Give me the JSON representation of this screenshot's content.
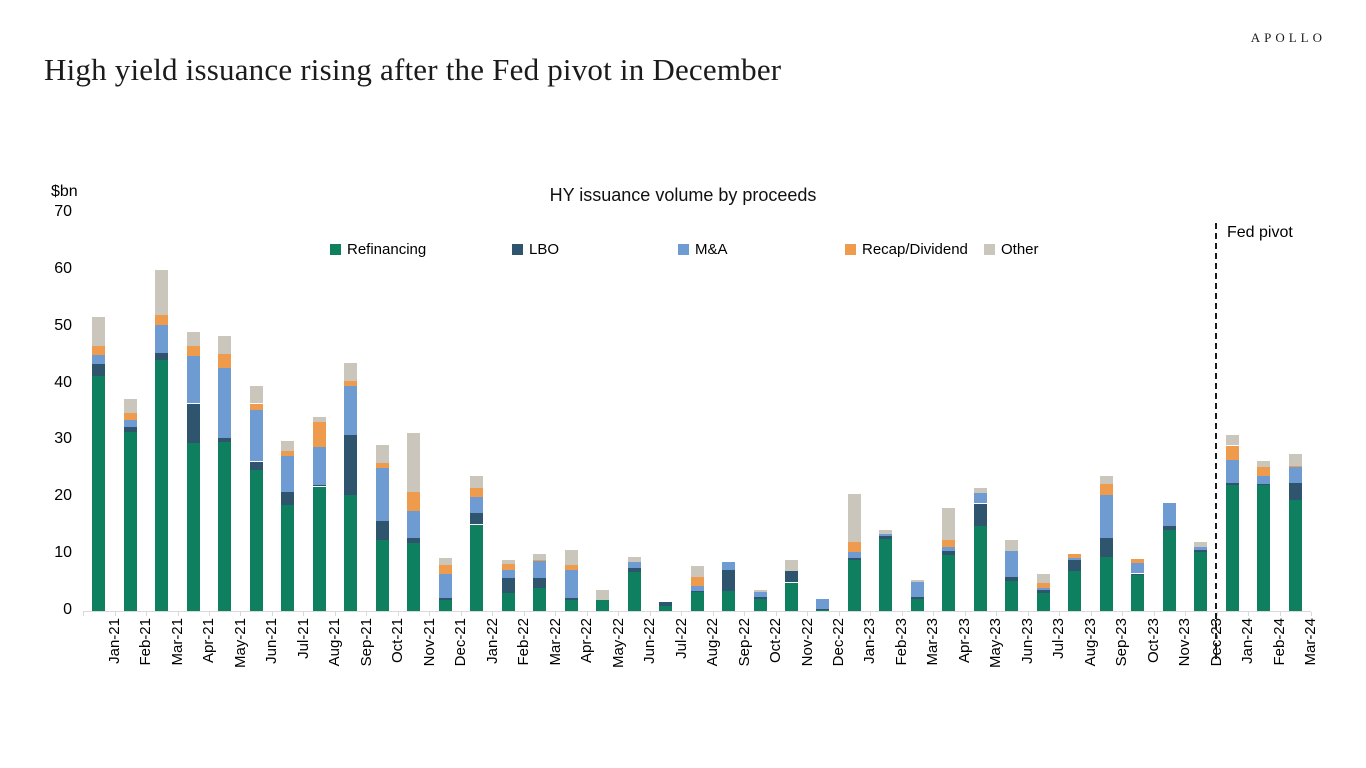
{
  "page": {
    "brand": "APOLLO",
    "title": "High yield issuance rising after the Fed pivot in December"
  },
  "chart_data": {
    "type": "bar",
    "stacked": true,
    "title": "HY issuance volume by proceeds",
    "unit_label": "$bn",
    "ylabel": "$bn",
    "ylim": [
      0,
      70
    ],
    "yticks": [
      0,
      10,
      20,
      30,
      40,
      50,
      60,
      70
    ],
    "grid": false,
    "legend_position": "top-center",
    "annotation": {
      "label": "Fed pivot",
      "after_category": "Dec-23",
      "style": "dashed-vertical-line"
    },
    "categories": [
      "Jan-21",
      "Feb-21",
      "Mar-21",
      "Apr-21",
      "May-21",
      "Jun-21",
      "Jul-21",
      "Aug-21",
      "Sep-21",
      "Oct-21",
      "Nov-21",
      "Dec-21",
      "Jan-22",
      "Feb-22",
      "Mar-22",
      "Apr-22",
      "May-22",
      "Jun-22",
      "Jul-22",
      "Aug-22",
      "Sep-22",
      "Oct-22",
      "Nov-22",
      "Dec-22",
      "Jan-23",
      "Feb-23",
      "Mar-23",
      "Apr-23",
      "May-23",
      "Jun-23",
      "Jul-23",
      "Aug-23",
      "Sep-23",
      "Oct-23",
      "Nov-23",
      "Dec-23",
      "Jan-24",
      "Feb-24",
      "Mar-24"
    ],
    "series": [
      {
        "name": "Refinancing",
        "color": "#0E8060",
        "values": [
          41.3,
          31.5,
          44.2,
          29.5,
          29.7,
          24.8,
          18.7,
          21.9,
          20.4,
          12.5,
          12.0,
          2.0,
          15.2,
          3.1,
          4.1,
          1.9,
          1.9,
          6.9,
          0.9,
          3.4,
          3.5,
          2.1,
          5.0,
          0.3,
          9.0,
          12.6,
          2.1,
          9.8,
          14.9,
          5.3,
          3.1,
          7.0,
          9.5,
          6.4,
          14.2,
          10.4,
          22.2,
          22.1,
          19.5
        ]
      },
      {
        "name": "LBO",
        "color": "#2F556E",
        "values": [
          2.1,
          0.8,
          1.1,
          7.0,
          0.8,
          1.5,
          2.3,
          0.3,
          10.6,
          3.4,
          0.9,
          0.3,
          2.1,
          2.7,
          1.8,
          0.4,
          0,
          0.6,
          0.7,
          0.1,
          3.7,
          0.4,
          2.1,
          0.1,
          0.3,
          0.6,
          0.4,
          0.7,
          4.0,
          0.7,
          0.6,
          1.9,
          3.3,
          0.2,
          0.8,
          0.4,
          0.3,
          0.2,
          3.0
        ]
      },
      {
        "name": "M&A",
        "color": "#6E9BD2",
        "values": [
          1.6,
          1.3,
          5.0,
          8.3,
          12.3,
          9.1,
          6.3,
          6.6,
          8.6,
          9.2,
          4.7,
          4.2,
          2.8,
          1.4,
          2.9,
          4.9,
          0,
          1.1,
          0,
          0.9,
          1.5,
          0.9,
          0,
          1.8,
          1.0,
          0.3,
          2.6,
          0.8,
          1.8,
          4.5,
          0.3,
          0.5,
          7.6,
          1.8,
          4.0,
          0.5,
          4.1,
          1.5,
          2.9
        ]
      },
      {
        "name": "Recap/Dividend",
        "color": "#EE9B4D",
        "values": [
          1.6,
          1.2,
          1.7,
          1.8,
          2.4,
          1.1,
          0.8,
          4.5,
          0.8,
          0.9,
          3.4,
          1.6,
          1.5,
          1.0,
          0.2,
          0.9,
          0,
          0,
          0,
          1.6,
          0,
          0,
          0,
          0,
          1.8,
          0,
          0,
          1.2,
          0,
          0,
          0.9,
          0.7,
          1.9,
          0.8,
          0,
          0,
          2.5,
          1.5,
          0.1
        ]
      },
      {
        "name": "Other",
        "color": "#CBC6BC",
        "values": [
          5.1,
          2.5,
          8.0,
          2.5,
          3.1,
          3.0,
          1.8,
          0.9,
          3.3,
          3.2,
          10.3,
          1.3,
          2.2,
          0.8,
          1.0,
          2.7,
          1.8,
          0.9,
          0,
          1.9,
          0,
          0.3,
          1.8,
          0,
          8.4,
          0.7,
          0.3,
          5.7,
          1.0,
          2.0,
          1.7,
          0,
          1.4,
          0,
          0,
          0.9,
          1.9,
          1.1,
          2.1
        ]
      }
    ]
  }
}
